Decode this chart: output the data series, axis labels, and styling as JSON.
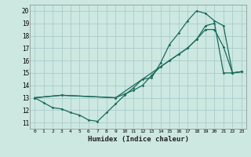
{
  "xlabel": "Humidex (Indice chaleur)",
  "bg_color": "#cce8e0",
  "grid_color": "#aacccc",
  "line_color": "#1a6b5a",
  "xlim": [
    -0.5,
    23.5
  ],
  "ylim": [
    10.5,
    20.5
  ],
  "xticks": [
    0,
    1,
    2,
    3,
    4,
    5,
    6,
    7,
    8,
    9,
    10,
    11,
    12,
    13,
    14,
    15,
    16,
    17,
    18,
    19,
    20,
    21,
    22,
    23
  ],
  "yticks": [
    11,
    12,
    13,
    14,
    15,
    16,
    17,
    18,
    19,
    20
  ],
  "line1_x": [
    0,
    1,
    2,
    3,
    4,
    5,
    6,
    7,
    8,
    9,
    10,
    11,
    12,
    13,
    14,
    15,
    16,
    17,
    18,
    19,
    20,
    21,
    22,
    23
  ],
  "line1_y": [
    13.0,
    12.6,
    12.2,
    12.1,
    11.8,
    11.6,
    11.2,
    11.1,
    11.8,
    12.5,
    13.2,
    13.8,
    14.5,
    14.6,
    15.8,
    17.3,
    18.2,
    19.2,
    20.0,
    19.8,
    19.2,
    18.8,
    15.0,
    15.1
  ],
  "line2_x": [
    0,
    3,
    9,
    10,
    11,
    12,
    13,
    14,
    15,
    16,
    17,
    18,
    19,
    20,
    21,
    22,
    23
  ],
  "line2_y": [
    13.0,
    13.2,
    13.0,
    13.3,
    13.6,
    14.0,
    14.8,
    15.5,
    16.0,
    16.5,
    17.0,
    17.7,
    18.5,
    18.5,
    17.1,
    15.0,
    15.1
  ],
  "line3_x": [
    0,
    3,
    9,
    14,
    15,
    16,
    17,
    18,
    19,
    20,
    21,
    22,
    23
  ],
  "line3_y": [
    13.0,
    13.2,
    13.0,
    15.5,
    16.0,
    16.5,
    17.0,
    17.7,
    18.8,
    19.0,
    15.0,
    15.0,
    15.1
  ]
}
